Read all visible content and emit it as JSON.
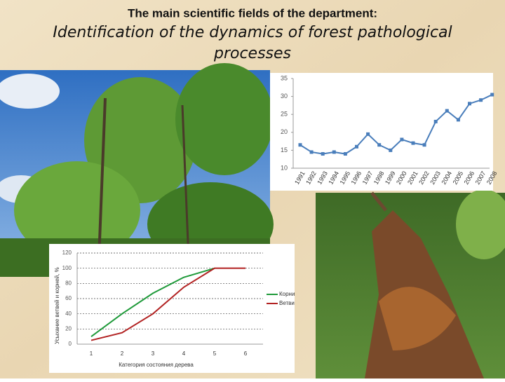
{
  "slide": {
    "heading": "The main scientific fields of the department:",
    "title": "Identification of the dynamics of forest pathological processes"
  },
  "chart_data": [
    {
      "type": "line",
      "categories": [
        "1991",
        "1992",
        "1993",
        "1994",
        "1995",
        "1996",
        "1997",
        "1998",
        "1999",
        "2000",
        "2001",
        "2002",
        "2003",
        "2004",
        "2005",
        "2006",
        "2007",
        "2008"
      ],
      "values": [
        16.5,
        14.5,
        14,
        14.5,
        14,
        16,
        19.5,
        16.5,
        15,
        18,
        17,
        16.5,
        23,
        26,
        23.5,
        28,
        29,
        30.5
      ],
      "color": "#4a7ebb",
      "ylim": [
        10,
        35
      ],
      "yticks": [
        10,
        15,
        20,
        25,
        30,
        35
      ],
      "grid": false,
      "markers": true
    },
    {
      "type": "line",
      "categories": [
        "1",
        "2",
        "3",
        "4",
        "5",
        "6"
      ],
      "x_label": "Категория состояния дерева",
      "y_label": "Усыхание ветвей и корней, %",
      "series": [
        {
          "name": "Корни",
          "color": "#1f9a3a",
          "values": [
            10,
            40,
            67,
            88,
            100,
            null
          ]
        },
        {
          "name": "Ветви",
          "color": "#b22222",
          "values": [
            5,
            15,
            40,
            75,
            100,
            100
          ]
        }
      ],
      "ylim": [
        0,
        120
      ],
      "yticks": [
        0,
        20,
        40,
        60,
        80,
        100,
        120
      ],
      "grid": true,
      "markers": false,
      "legend": "right"
    }
  ]
}
